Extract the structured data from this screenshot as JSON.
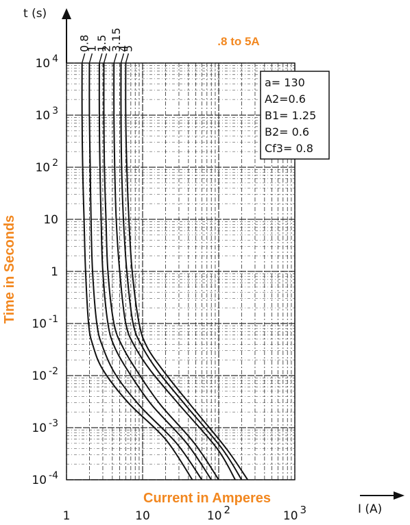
{
  "colors": {
    "accent": "#f2871f",
    "ink": "#111111",
    "grid": "#2a2a2a"
  },
  "chart_data": {
    "type": "line",
    "title": ".8 to 5A",
    "xlabel": "Current in Amperes",
    "ylabel": "Time in Seconds",
    "x_axis_symbol": "I (A)",
    "y_axis_symbol": "t (s)",
    "x_scale": "log",
    "y_scale": "log",
    "xlim": [
      1,
      1000
    ],
    "ylim": [
      0.0001,
      10000
    ],
    "x_ticks": [
      {
        "value": 1,
        "base": "1",
        "exp": ""
      },
      {
        "value": 10,
        "base": "10",
        "exp": ""
      },
      {
        "value": 100,
        "base": "10",
        "exp": "2"
      },
      {
        "value": 1000,
        "base": "10",
        "exp": "3"
      }
    ],
    "y_ticks": [
      {
        "value": 10000,
        "base": "10",
        "exp": "4"
      },
      {
        "value": 1000,
        "base": "10",
        "exp": "3"
      },
      {
        "value": 100,
        "base": "10",
        "exp": "2"
      },
      {
        "value": 10,
        "base": "10",
        "exp": ""
      },
      {
        "value": 1,
        "base": "1",
        "exp": ""
      },
      {
        "value": 0.1,
        "base": "10",
        "exp": "-1"
      },
      {
        "value": 0.01,
        "base": "10",
        "exp": "-2"
      },
      {
        "value": 0.001,
        "base": "10",
        "exp": "-3"
      },
      {
        "value": 0.0001,
        "base": "10",
        "exp": "-4"
      }
    ],
    "grid": true,
    "legend_box": {
      "position": "top-right",
      "lines": [
        "a= 130",
        "A2=0.6",
        "B1= 1.25",
        "B2= 0.6",
        "Cf3= 0.8"
      ]
    },
    "series": [
      {
        "name": "0.8",
        "points": [
          [
            1.6,
            10000
          ],
          [
            1.6,
            1000
          ],
          [
            1.63,
            100
          ],
          [
            1.7,
            10
          ],
          [
            1.78,
            1
          ],
          [
            1.95,
            0.1
          ],
          [
            2.2,
            0.04
          ],
          [
            3.0,
            0.013
          ],
          [
            6.5,
            0.003
          ],
          [
            20.0,
            0.0006
          ],
          [
            45.0,
            0.0001
          ]
        ]
      },
      {
        "name": "1",
        "points": [
          [
            2.0,
            10000
          ],
          [
            2.0,
            1000
          ],
          [
            2.05,
            100
          ],
          [
            2.1,
            10
          ],
          [
            2.2,
            1
          ],
          [
            2.5,
            0.1
          ],
          [
            3.0,
            0.035
          ],
          [
            4.5,
            0.01
          ],
          [
            9.5,
            0.0025
          ],
          [
            28.0,
            0.0005
          ],
          [
            60.0,
            0.0001
          ]
        ]
      },
      {
        "name": "1.5",
        "points": [
          [
            2.7,
            10000
          ],
          [
            2.7,
            1000
          ],
          [
            2.75,
            100
          ],
          [
            2.85,
            10
          ],
          [
            3.0,
            1
          ],
          [
            3.5,
            0.1
          ],
          [
            4.3,
            0.035
          ],
          [
            6.5,
            0.012
          ],
          [
            13.0,
            0.0028
          ],
          [
            38.0,
            0.0005
          ],
          [
            80.0,
            0.0001
          ]
        ]
      },
      {
        "name": "2",
        "points": [
          [
            3.1,
            10000
          ],
          [
            3.1,
            1000
          ],
          [
            3.15,
            100
          ],
          [
            3.3,
            10
          ],
          [
            3.5,
            1
          ],
          [
            4.2,
            0.1
          ],
          [
            5.5,
            0.035
          ],
          [
            8.5,
            0.012
          ],
          [
            17.0,
            0.0028
          ],
          [
            48.0,
            0.0005
          ],
          [
            100.0,
            0.0001
          ]
        ]
      },
      {
        "name": "3.15",
        "points": [
          [
            4.2,
            10000
          ],
          [
            4.2,
            1000
          ],
          [
            4.3,
            100
          ],
          [
            4.5,
            10
          ],
          [
            5.0,
            1
          ],
          [
            6.0,
            0.1
          ],
          [
            8.0,
            0.035
          ],
          [
            13.0,
            0.012
          ],
          [
            30.0,
            0.0028
          ],
          [
            95.0,
            0.0004
          ],
          [
            165.0,
            0.0001
          ]
        ]
      },
      {
        "name": "4",
        "points": [
          [
            5.2,
            10000
          ],
          [
            5.2,
            1000
          ],
          [
            5.3,
            100
          ],
          [
            5.6,
            10
          ],
          [
            6.2,
            1
          ],
          [
            7.5,
            0.1
          ],
          [
            10.0,
            0.035
          ],
          [
            16.0,
            0.012
          ],
          [
            36.0,
            0.0028
          ],
          [
            110.0,
            0.0004
          ],
          [
            200.0,
            0.0001
          ]
        ]
      },
      {
        "name": "5",
        "points": [
          [
            6.0,
            10000
          ],
          [
            6.0,
            1000
          ],
          [
            6.2,
            100
          ],
          [
            6.6,
            10
          ],
          [
            7.3,
            1
          ],
          [
            9.0,
            0.1
          ],
          [
            11.5,
            0.035
          ],
          [
            19.0,
            0.012
          ],
          [
            42.0,
            0.0028
          ],
          [
            125.0,
            0.0004
          ],
          [
            240.0,
            0.0001
          ]
        ]
      }
    ]
  }
}
